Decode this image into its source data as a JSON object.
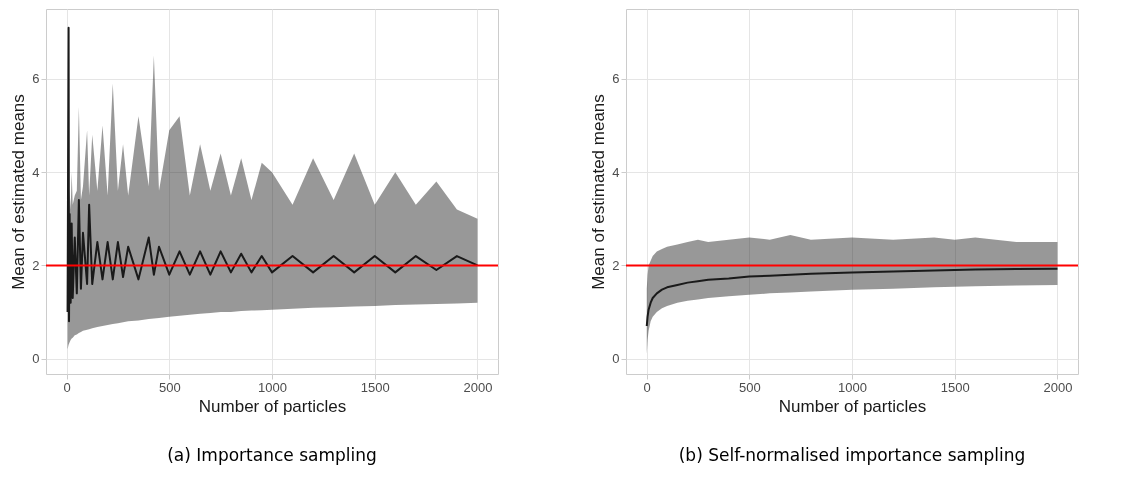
{
  "chart_data": [
    {
      "type": "line",
      "title": "(a) Importance sampling",
      "xlabel": "Number of particles",
      "ylabel": "Mean of estimated means",
      "xlim": [
        -100,
        2100
      ],
      "ylim": [
        -0.33,
        7.5
      ],
      "xticks": [
        0,
        500,
        1000,
        1500,
        2000
      ],
      "yticks": [
        0,
        2,
        4,
        6
      ],
      "grid": true,
      "series": [
        {
          "color": "#1a1a1a",
          "x": [
            5,
            10,
            12,
            15,
            20,
            25,
            30,
            40,
            50,
            60,
            70,
            80,
            100,
            110,
            125,
            150,
            175,
            200,
            225,
            250,
            275,
            300,
            350,
            400,
            425,
            450,
            500,
            550,
            600,
            650,
            700,
            750,
            800,
            850,
            900,
            950,
            1000,
            1100,
            1200,
            1300,
            1400,
            1500,
            1600,
            1700,
            1800,
            1900,
            2000
          ],
          "values": [
            1.0,
            7.1,
            0.8,
            3.1,
            1.2,
            2.9,
            1.3,
            2.6,
            1.4,
            3.4,
            1.5,
            2.7,
            1.6,
            3.3,
            1.6,
            2.5,
            1.7,
            2.5,
            1.7,
            2.5,
            1.75,
            2.4,
            1.7,
            2.6,
            1.8,
            2.4,
            1.8,
            2.3,
            1.8,
            2.3,
            1.8,
            2.3,
            1.85,
            2.25,
            1.85,
            2.2,
            1.85,
            2.2,
            1.85,
            2.2,
            1.85,
            2.2,
            1.85,
            2.2,
            1.9,
            2.2,
            2.0
          ],
          "lower": [
            0.2,
            0.3,
            0.32,
            0.35,
            0.4,
            0.43,
            0.45,
            0.5,
            0.52,
            0.55,
            0.57,
            0.6,
            0.62,
            0.63,
            0.65,
            0.68,
            0.7,
            0.72,
            0.74,
            0.76,
            0.78,
            0.8,
            0.82,
            0.85,
            0.86,
            0.87,
            0.9,
            0.92,
            0.94,
            0.96,
            0.98,
            1.0,
            1.0,
            1.02,
            1.03,
            1.04,
            1.05,
            1.07,
            1.09,
            1.1,
            1.12,
            1.13,
            1.15,
            1.16,
            1.17,
            1.18,
            1.2
          ],
          "upper": [
            4.2,
            7.1,
            3.0,
            3.6,
            3.2,
            4.0,
            3.3,
            3.5,
            3.6,
            5.4,
            3.4,
            3.7,
            4.9,
            3.5,
            4.8,
            3.6,
            5.0,
            3.5,
            5.9,
            3.6,
            4.6,
            3.5,
            5.2,
            3.7,
            6.5,
            3.6,
            4.9,
            5.2,
            3.5,
            4.6,
            3.6,
            4.4,
            3.5,
            4.3,
            3.4,
            4.2,
            4.0,
            3.3,
            4.3,
            3.4,
            4.4,
            3.3,
            4.0,
            3.3,
            3.8,
            3.2,
            3.0
          ]
        }
      ],
      "ref_lines": [
        {
          "axis": "y",
          "value": 2,
          "color": "#ff0000"
        }
      ]
    },
    {
      "type": "line",
      "title": "(b) Self-normalised importance sampling",
      "xlabel": "Number of particles",
      "ylabel": "Mean of estimated means",
      "xlim": [
        -100,
        2100
      ],
      "ylim": [
        -0.33,
        7.5
      ],
      "xticks": [
        0,
        500,
        1000,
        1500,
        2000
      ],
      "yticks": [
        0,
        2,
        4,
        6
      ],
      "grid": true,
      "series": [
        {
          "color": "#1a1a1a",
          "x": [
            1,
            5,
            10,
            20,
            30,
            50,
            75,
            100,
            150,
            200,
            250,
            300,
            400,
            500,
            600,
            700,
            800,
            1000,
            1200,
            1400,
            1500,
            1600,
            1800,
            2000
          ],
          "values": [
            0.7,
            0.9,
            1.05,
            1.2,
            1.3,
            1.4,
            1.48,
            1.53,
            1.58,
            1.63,
            1.66,
            1.69,
            1.72,
            1.76,
            1.78,
            1.8,
            1.82,
            1.85,
            1.87,
            1.89,
            1.9,
            1.91,
            1.92,
            1.93
          ],
          "lower": [
            0.1,
            0.4,
            0.6,
            0.8,
            0.9,
            1.0,
            1.08,
            1.13,
            1.2,
            1.24,
            1.27,
            1.3,
            1.34,
            1.37,
            1.4,
            1.42,
            1.44,
            1.48,
            1.5,
            1.53,
            1.54,
            1.55,
            1.57,
            1.58
          ],
          "upper": [
            1.5,
            1.8,
            2.0,
            2.1,
            2.2,
            2.3,
            2.35,
            2.4,
            2.45,
            2.5,
            2.55,
            2.5,
            2.55,
            2.6,
            2.55,
            2.65,
            2.55,
            2.6,
            2.55,
            2.6,
            2.55,
            2.6,
            2.5,
            2.5
          ]
        }
      ],
      "ref_lines": [
        {
          "axis": "y",
          "value": 2,
          "color": "#ff0000"
        }
      ]
    }
  ]
}
